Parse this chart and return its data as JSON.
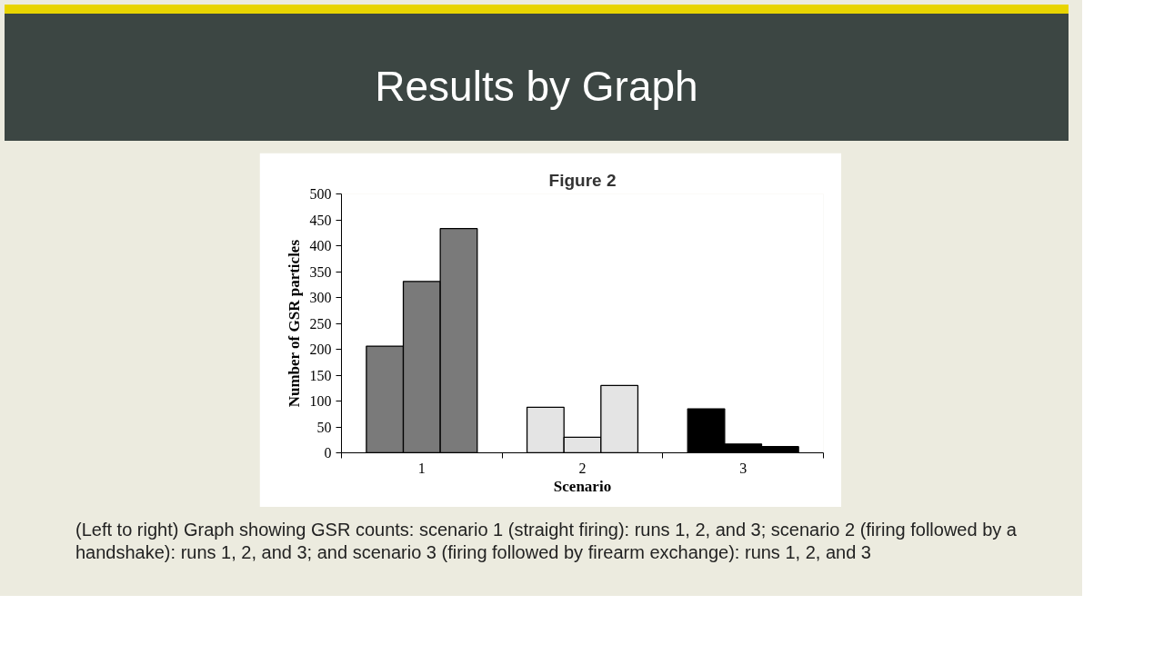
{
  "chart_data": {
    "type": "bar",
    "title": "Results by Graph",
    "subtitle": "Figure 2",
    "xlabel": "Scenario",
    "ylabel": "Number of GSR particles",
    "categories": [
      "1",
      "2",
      "3"
    ],
    "series": [
      {
        "colors": [
          "#7a7a7a",
          "#e4e4e4",
          "#000000"
        ],
        "values": [
          206,
          88,
          85
        ]
      },
      {
        "colors": [
          "#7a7a7a",
          "#e4e4e4",
          "#000000"
        ],
        "values": [
          331,
          30,
          17
        ]
      },
      {
        "colors": [
          "#7a7a7a",
          "#e4e4e4",
          "#000000"
        ],
        "values": [
          433,
          130,
          12
        ]
      }
    ],
    "ylim": [
      0,
      500
    ],
    "yticks": [
      0,
      50,
      100,
      150,
      200,
      250,
      300,
      350,
      400,
      450,
      500
    ],
    "grid": false,
    "annotations": [
      "(Left to right) Graph showing GSR counts: scenario 1 (straight firing): runs 1, 2, and 3; scenario 2 (firing followed by a handshake): runs 1, 2, and 3; and scenario 3 (firing followed by firearm exchange): runs 1, 2, and 3"
    ]
  }
}
